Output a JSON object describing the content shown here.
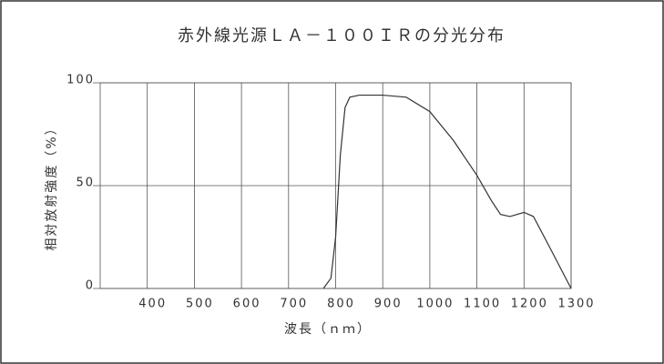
{
  "chart_data": {
    "type": "line",
    "title": "赤外線光源ＬＡ－１００ＩＲの分光分布",
    "x_label": "波長（ｎｍ）",
    "y_label": "相対放射強度（%）",
    "x": [
      774,
      790,
      800,
      810,
      820,
      830,
      850,
      900,
      950,
      1000,
      1050,
      1100,
      1130,
      1150,
      1170,
      1200,
      1220,
      1250,
      1300
    ],
    "values": [
      0,
      5,
      25,
      65,
      88,
      93,
      94,
      94,
      93,
      86,
      72,
      55,
      43,
      36,
      35,
      37,
      35,
      22,
      0
    ],
    "color": "#333333",
    "xlim": [
      300,
      1300
    ],
    "xticks": [
      400,
      500,
      600,
      700,
      800,
      900,
      1000,
      1100,
      1200,
      1300
    ],
    "ylim": [
      0,
      100
    ],
    "yticks": [
      0,
      50,
      100
    ],
    "grid": true
  }
}
